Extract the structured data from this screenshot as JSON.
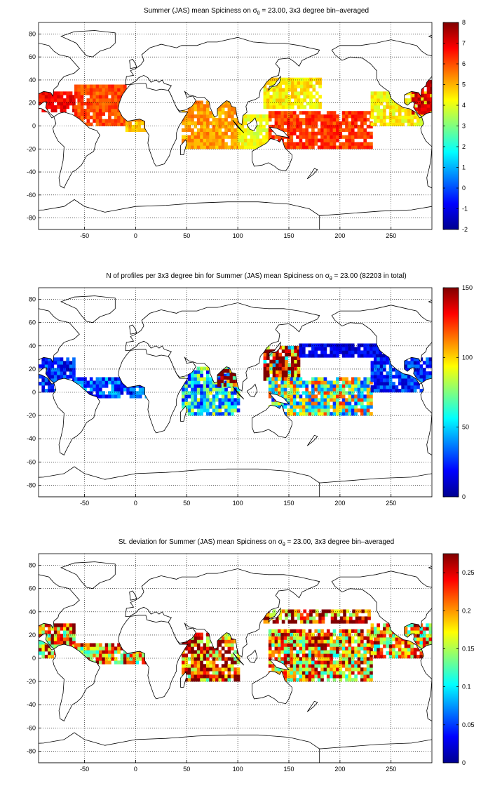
{
  "panels": [
    {
      "title_pre": "Summer (JAS) mean Spiciness on ",
      "title_sym": "σ",
      "title_sub": "θ",
      "title_post": " = 23.00, 3x3 degree bin–averaged",
      "colorbar": {
        "min": -2,
        "max": 8,
        "ticks": [
          "-2",
          "-1",
          "0",
          "1",
          "2",
          "3",
          "4",
          "5",
          "6",
          "7",
          "8"
        ]
      },
      "field": "mean_spiciness"
    },
    {
      "title_pre": "N of profiles per 3x3 degree bin for Summer (JAS) mean Spiciness on ",
      "title_sym": "σ",
      "title_sub": "θ",
      "title_post": " = 23.00 (82203 in total)",
      "colorbar": {
        "min": 0,
        "max": 150,
        "ticks": [
          "0",
          "50",
          "100",
          "150"
        ]
      },
      "field": "profile_count"
    },
    {
      "title_pre": "St. deviation for Summer (JAS) mean Spiciness on ",
      "title_sym": "σ",
      "title_sub": "θ",
      "title_post": " = 23.00, 3x3 degree bin–averaged",
      "colorbar": {
        "min": 0,
        "max": 0.275,
        "ticks": [
          "0",
          "0.05",
          "0.1",
          "0.15",
          "0.2",
          "0.25"
        ]
      },
      "field": "std_spiciness"
    }
  ],
  "x_axis": {
    "min": -95,
    "max": 290,
    "ticks": [
      "-50",
      "0",
      "50",
      "100",
      "150",
      "200",
      "250"
    ]
  },
  "y_axis": {
    "min": -90,
    "max": 90,
    "ticks": [
      "-80",
      "-60",
      "-40",
      "-20",
      "0",
      "20",
      "40",
      "60",
      "80"
    ]
  },
  "grid": "dotted",
  "colormap": "jet",
  "chart_data": [
    {
      "type": "heatmap",
      "title": "Summer (JAS) mean Spiciness on σθ = 23.00, 3x3 degree bin–averaged",
      "xlim": [
        -95,
        290
      ],
      "ylim": [
        -90,
        90
      ],
      "clim": [
        -2,
        8
      ],
      "regions": [
        {
          "lon": [
            -95,
            -60
          ],
          "lat": [
            12,
            30
          ],
          "value": 6.8
        },
        {
          "lon": [
            -60,
            -10
          ],
          "lat": [
            0,
            35
          ],
          "value": 6.0
        },
        {
          "lon": [
            -10,
            10
          ],
          "lat": [
            -5,
            12
          ],
          "value": 5.0
        },
        {
          "lon": [
            45,
            100
          ],
          "lat": [
            -20,
            20
          ],
          "value": 5.2
        },
        {
          "lon": [
            100,
            130
          ],
          "lat": [
            -20,
            10
          ],
          "value": 4.2
        },
        {
          "lon": [
            125,
            180
          ],
          "lat": [
            15,
            40
          ],
          "value": 4.4
        },
        {
          "lon": [
            130,
            230
          ],
          "lat": [
            -20,
            12
          ],
          "value": 6.2
        },
        {
          "lon": [
            230,
            290
          ],
          "lat": [
            0,
            30
          ],
          "value": 4.3
        },
        {
          "lon": [
            270,
            290
          ],
          "lat": [
            10,
            40
          ],
          "value": 7.2
        }
      ]
    },
    {
      "type": "heatmap",
      "title": "N of profiles per 3x3 degree bin for Summer (JAS) mean Spiciness on σθ = 23.00 (82203 in total)",
      "xlim": [
        -95,
        290
      ],
      "ylim": [
        -90,
        90
      ],
      "clim": [
        0,
        150
      ],
      "total": 82203,
      "regions": [
        {
          "lon": [
            -95,
            -60
          ],
          "lat": [
            0,
            30
          ],
          "value": 25
        },
        {
          "lon": [
            -60,
            10
          ],
          "lat": [
            -5,
            12
          ],
          "value": 30
        },
        {
          "lon": [
            45,
            100
          ],
          "lat": [
            -20,
            20
          ],
          "value": 55
        },
        {
          "lon": [
            80,
            100
          ],
          "lat": [
            5,
            20
          ],
          "value": 130
        },
        {
          "lon": [
            125,
            160
          ],
          "lat": [
            10,
            40
          ],
          "value": 140
        },
        {
          "lon": [
            130,
            230
          ],
          "lat": [
            -20,
            12
          ],
          "value": 75
        },
        {
          "lon": [
            160,
            260
          ],
          "lat": [
            30,
            40
          ],
          "value": 15
        },
        {
          "lon": [
            230,
            290
          ],
          "lat": [
            0,
            30
          ],
          "value": 25
        }
      ]
    },
    {
      "type": "heatmap",
      "title": "St. deviation for Summer (JAS) mean Spiciness on σθ = 23.00, 3x3 degree bin–averaged",
      "xlim": [
        -95,
        290
      ],
      "ylim": [
        -90,
        90
      ],
      "clim": [
        0,
        0.275
      ],
      "regions": [
        {
          "lon": [
            -95,
            -60
          ],
          "lat": [
            0,
            30
          ],
          "value": 0.22
        },
        {
          "lon": [
            -60,
            10
          ],
          "lat": [
            -5,
            12
          ],
          "value": 0.2
        },
        {
          "lon": [
            45,
            100
          ],
          "lat": [
            -20,
            20
          ],
          "value": 0.24
        },
        {
          "lon": [
            125,
            230
          ],
          "lat": [
            30,
            40
          ],
          "value": 0.27
        },
        {
          "lon": [
            130,
            230
          ],
          "lat": [
            -20,
            25
          ],
          "value": 0.21
        },
        {
          "lon": [
            230,
            290
          ],
          "lat": [
            0,
            30
          ],
          "value": 0.2
        }
      ]
    }
  ]
}
